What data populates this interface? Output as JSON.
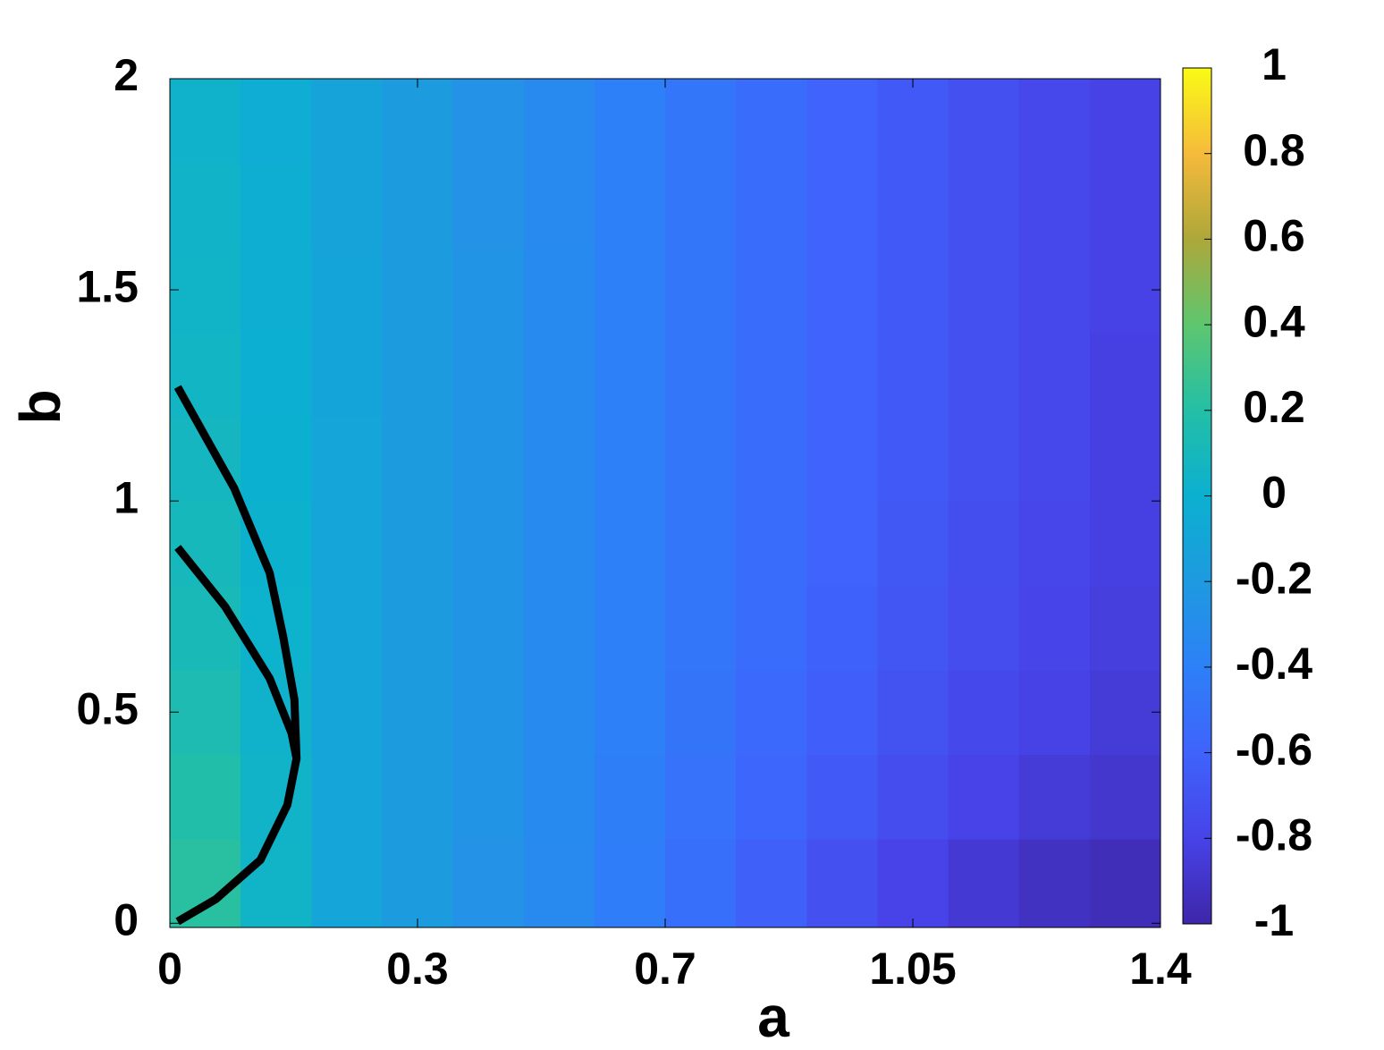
{
  "chart_data": {
    "type": "heatmap",
    "xlabel": "a",
    "ylabel": "b",
    "x": [
      0.05,
      0.15,
      0.25,
      0.35,
      0.45,
      0.55,
      0.65,
      0.75,
      0.85,
      0.95,
      1.05,
      1.15,
      1.25,
      1.35
    ],
    "y": [
      0.1,
      0.3,
      0.5,
      0.7,
      0.9,
      1.1,
      1.3,
      1.5,
      1.7,
      1.9
    ],
    "z": [
      [
        0.22,
        0.05,
        -0.1,
        -0.18,
        -0.26,
        -0.33,
        -0.42,
        -0.52,
        -0.62,
        -0.72,
        -0.8,
        -0.87,
        -0.92,
        -0.95
      ],
      [
        0.18,
        0.04,
        -0.1,
        -0.18,
        -0.25,
        -0.32,
        -0.41,
        -0.5,
        -0.58,
        -0.66,
        -0.74,
        -0.8,
        -0.85,
        -0.88
      ],
      [
        0.15,
        0.03,
        -0.1,
        -0.18,
        -0.25,
        -0.32,
        -0.4,
        -0.48,
        -0.56,
        -0.63,
        -0.7,
        -0.76,
        -0.81,
        -0.85
      ],
      [
        0.12,
        0.02,
        -0.1,
        -0.18,
        -0.25,
        -0.32,
        -0.4,
        -0.47,
        -0.54,
        -0.61,
        -0.68,
        -0.74,
        -0.79,
        -0.83
      ],
      [
        0.1,
        0.01,
        -0.1,
        -0.18,
        -0.25,
        -0.32,
        -0.4,
        -0.47,
        -0.54,
        -0.6,
        -0.67,
        -0.73,
        -0.78,
        -0.82
      ],
      [
        0.08,
        0,
        -0.1,
        -0.18,
        -0.25,
        -0.32,
        -0.4,
        -0.47,
        -0.54,
        -0.6,
        -0.66,
        -0.72,
        -0.77,
        -0.82
      ],
      [
        0.06,
        -0.01,
        -0.11,
        -0.18,
        -0.25,
        -0.32,
        -0.4,
        -0.47,
        -0.54,
        -0.6,
        -0.66,
        -0.72,
        -0.77,
        -0.82
      ],
      [
        0.05,
        -0.02,
        -0.11,
        -0.18,
        -0.25,
        -0.32,
        -0.4,
        -0.47,
        -0.54,
        -0.6,
        -0.66,
        -0.72,
        -0.77,
        -0.81
      ],
      [
        0.04,
        -0.03,
        -0.12,
        -0.19,
        -0.26,
        -0.33,
        -0.4,
        -0.47,
        -0.54,
        -0.6,
        -0.66,
        -0.72,
        -0.77,
        -0.81
      ],
      [
        0.03,
        -0.04,
        -0.12,
        -0.19,
        -0.26,
        -0.33,
        -0.4,
        -0.47,
        -0.54,
        -0.6,
        -0.66,
        -0.72,
        -0.77,
        -0.81
      ]
    ],
    "contours": [
      {
        "color": "#000000",
        "x": [
          0.011,
          0.091,
          0.141,
          0.16,
          0.176,
          0.179,
          0.166,
          0.128,
          0.065,
          0.011
        ],
        "y": [
          1.27,
          1.03,
          0.83,
          0.68,
          0.53,
          0.39,
          0.28,
          0.15,
          0.057,
          0.004
        ]
      },
      {
        "color": "#000000",
        "x": [
          0.011,
          0.078,
          0.141,
          0.172,
          0.179
        ],
        "y": [
          0.89,
          0.75,
          0.58,
          0.45,
          0.39
        ]
      }
    ],
    "xlim": [
      0,
      1.4
    ],
    "xticks": [
      0,
      {
        "value": 0.35,
        "label": "0.3"
      },
      0.7,
      1.05,
      1.4
    ],
    "ylim": [
      -0.01,
      2
    ],
    "yticks": [
      0,
      0.5,
      1,
      1.5,
      2
    ],
    "clim": [
      -1,
      1
    ],
    "cticks": [
      -1,
      -0.8,
      -0.6,
      -0.4,
      -0.2,
      0,
      0.2,
      0.4,
      0.6,
      0.8,
      1
    ],
    "colormap": [
      "#3e26a8",
      "#4743e8",
      "#3f63fc",
      "#2d80f7",
      "#1e9ae0",
      "#0bb0d0",
      "#23bfa6",
      "#5ec66f",
      "#ada73a",
      "#f5ba3b",
      "#f9fb15"
    ]
  }
}
